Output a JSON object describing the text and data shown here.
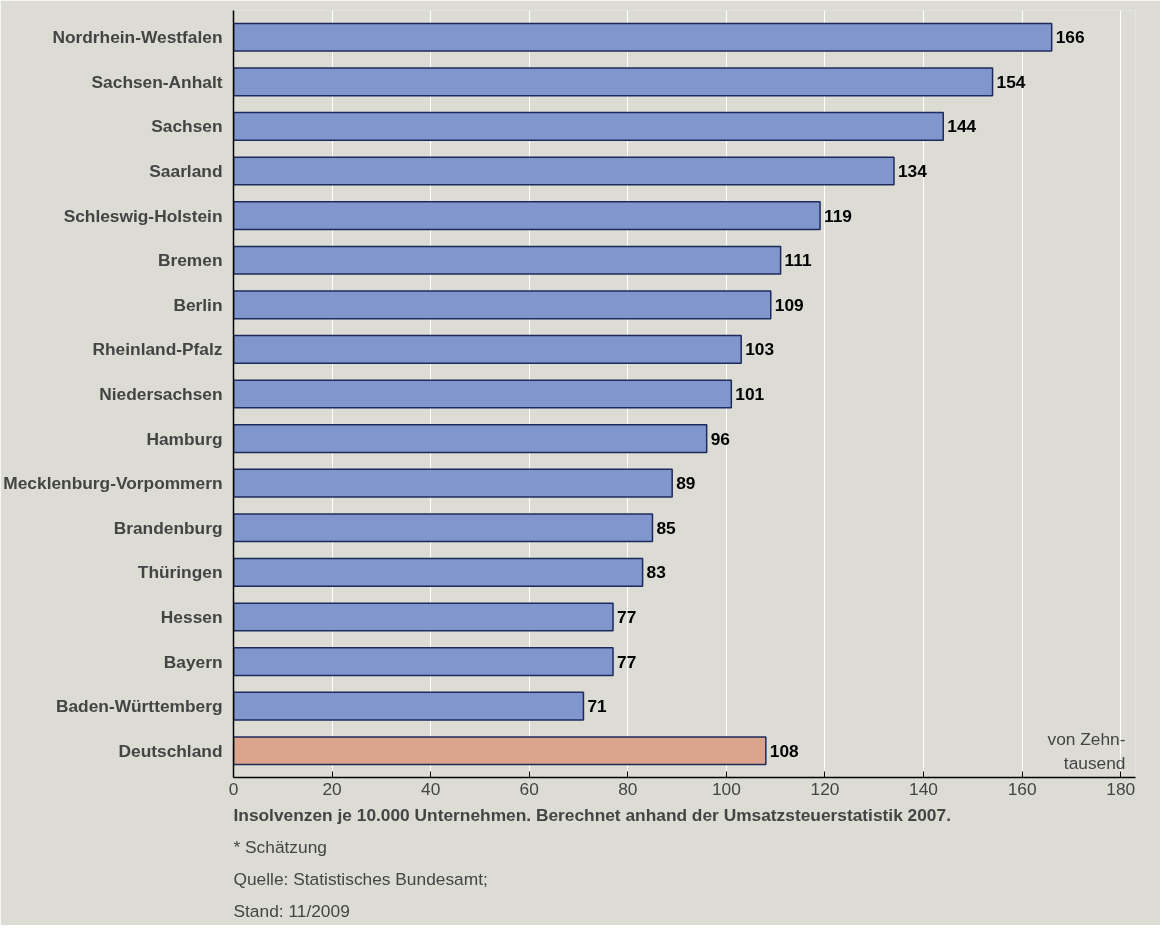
{
  "chart_data": {
    "type": "bar",
    "orientation": "horizontal",
    "title": "Insolvenzen je 10.000 Unternehmen. Berechnet anhand der Umsatzsteuerstatistik 2007.",
    "xlabel": "von Zehn-\ntausend",
    "categories": [
      "Nordrhein-Westfalen",
      "Sachsen-Anhalt",
      "Sachsen",
      "Saarland",
      "Schleswig-Holstein",
      "Bremen",
      "Berlin",
      "Rheinland-Pfalz",
      "Niedersachsen",
      "Hamburg",
      "Mecklenburg-Vorpommern",
      "Brandenburg",
      "Thüringen",
      "Hessen",
      "Bayern",
      "Baden-Württemberg",
      "Deutschland"
    ],
    "values": [
      166,
      154,
      144,
      134,
      119,
      111,
      109,
      103,
      101,
      96,
      89,
      85,
      83,
      77,
      77,
      71,
      108
    ],
    "colors": [
      "#8196cc",
      "#8196cc",
      "#8196cc",
      "#8196cc",
      "#8196cc",
      "#8196cc",
      "#8196cc",
      "#8196cc",
      "#8196cc",
      "#8196cc",
      "#8196cc",
      "#8196cc",
      "#8196cc",
      "#8196cc",
      "#8196cc",
      "#8196cc",
      "#dca48c"
    ],
    "xlim": [
      0,
      183
    ],
    "xticks": [
      0,
      20,
      40,
      60,
      80,
      100,
      120,
      140,
      160,
      180
    ],
    "grid": "x",
    "data_labels": true,
    "annotations": [
      "* Schätzung",
      "Quelle: Statistisches Bundesamt;",
      "Stand: 11/2009"
    ]
  }
}
